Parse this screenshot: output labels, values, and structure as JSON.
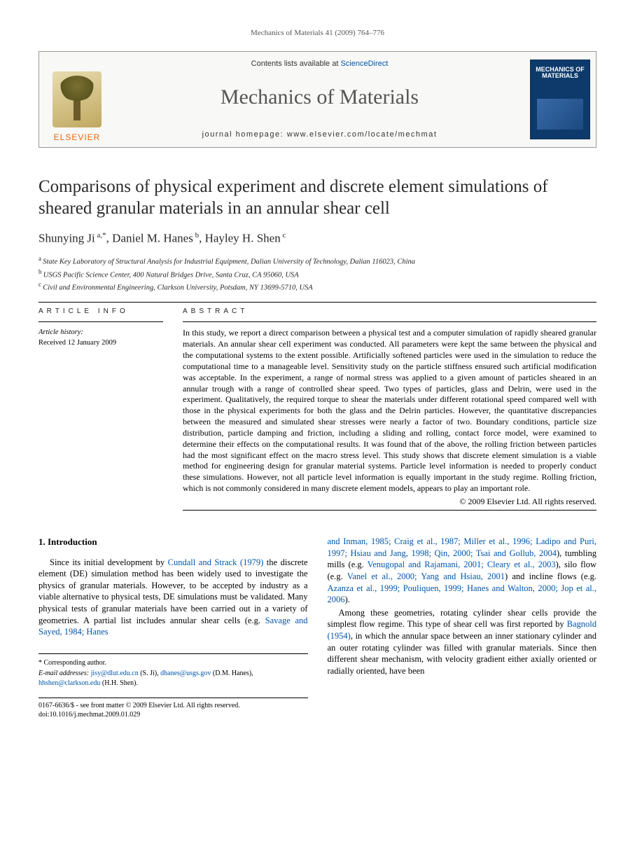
{
  "runningHead": "Mechanics of Materials 41 (2009) 764–776",
  "masthead": {
    "publisher": "ELSEVIER",
    "contentsLine_pre": "Contents lists available at ",
    "contentsLine_link": "ScienceDirect",
    "journalTitle": "Mechanics of Materials",
    "homepageLine": "journal homepage: www.elsevier.com/locate/mechmat",
    "coverTitle": "MECHANICS OF MATERIALS",
    "colors": {
      "boxBorder": "#999999",
      "boxBg": "#f8f8f6",
      "elsevierOrange": "#ec6608",
      "linkBlue": "#0055aa",
      "coverBlue": "#0d3a6b"
    }
  },
  "article": {
    "title": "Comparisons of physical experiment and discrete element simulations of sheared granular materials in an annular shear cell",
    "authorsHtmlParts": [
      {
        "t": "name",
        "v": "Shunying Ji"
      },
      {
        "t": "sup",
        "v": " a,*"
      },
      {
        "t": "sep",
        "v": ", "
      },
      {
        "t": "name",
        "v": "Daniel M. Hanes"
      },
      {
        "t": "sup",
        "v": " b"
      },
      {
        "t": "sep",
        "v": ", "
      },
      {
        "t": "name",
        "v": "Hayley H. Shen"
      },
      {
        "t": "sup",
        "v": " c"
      }
    ],
    "affiliations": [
      {
        "sup": "a",
        "text": "State Key Laboratory of Structural Analysis for Industrial Equipment, Dalian University of Technology, Dalian 116023, China"
      },
      {
        "sup": "b",
        "text": "USGS Pacific Science Center, 400 Natural Bridges Drive, Santa Cruz, CA 95060, USA"
      },
      {
        "sup": "c",
        "text": "Civil and Environmental Engineering, Clarkson University, Potsdam, NY 13699-5710, USA"
      }
    ]
  },
  "info": {
    "head": "ARTICLE INFO",
    "historyLabel": "Article history:",
    "received": "Received 12 January 2009"
  },
  "abstract": {
    "head": "ABSTRACT",
    "text": "In this study, we report a direct comparison between a physical test and a computer simulation of rapidly sheared granular materials. An annular shear cell experiment was conducted. All parameters were kept the same between the physical and the computational systems to the extent possible. Artificially softened particles were used in the simulation to reduce the computational time to a manageable level. Sensitivity study on the particle stiffness ensured such artificial modification was acceptable. In the experiment, a range of normal stress was applied to a given amount of particles sheared in an annular trough with a range of controlled shear speed. Two types of particles, glass and Delrin, were used in the experiment. Qualitatively, the required torque to shear the materials under different rotational speed compared well with those in the physical experiments for both the glass and the Delrin particles. However, the quantitative discrepancies between the measured and simulated shear stresses were nearly a factor of two. Boundary conditions, particle size distribution, particle damping and friction, including a sliding and rolling, contact force model, were examined to determine their effects on the computational results. It was found that of the above, the rolling friction between particles had the most significant effect on the macro stress level. This study shows that discrete element simulation is a viable method for engineering design for granular material systems. Particle level information is needed to properly conduct these simulations. However, not all particle level information is equally important in the study regime. Rolling friction, which is not commonly considered in many discrete element models, appears to play an important role.",
    "copyright": "© 2009 Elsevier Ltd. All rights reserved."
  },
  "body": {
    "sectionNumber": "1.",
    "sectionTitle": "Introduction",
    "leftParaParts": [
      {
        "t": "txt",
        "v": "Since its initial development by "
      },
      {
        "t": "cite",
        "v": "Cundall and Strack (1979)"
      },
      {
        "t": "txt",
        "v": " the discrete element (DE) simulation method has been widely used to investigate the physics of granular materials. However, to be accepted by industry as a viable alternative to physical tests, DE simulations must be validated. Many physical tests of granular materials have been carried out in a variety of geometries. A partial list includes annular shear cells (e.g. "
      },
      {
        "t": "cite",
        "v": "Savage and Sayed, 1984; Hanes"
      }
    ],
    "rightPara1Parts": [
      {
        "t": "cite",
        "v": "and Inman, 1985; Craig et al., 1987; Miller et al., 1996; Ladipo and Puri, 1997; Hsiau and Jang, 1998; Qin, 2000; Tsai and Gollub, 2004"
      },
      {
        "t": "txt",
        "v": "), tumbling mills (e.g. "
      },
      {
        "t": "cite",
        "v": "Venugopal and Rajamani, 2001; Cleary et al., 2003"
      },
      {
        "t": "txt",
        "v": "), silo flow (e.g. "
      },
      {
        "t": "cite",
        "v": "Vanel et al., 2000; Yang and Hsiau, 2001"
      },
      {
        "t": "txt",
        "v": ") and incline flows (e.g. "
      },
      {
        "t": "cite",
        "v": "Azanza et al., 1999; Pouliquen, 1999; Hanes and Walton, 2000; Jop et al., 2006"
      },
      {
        "t": "txt",
        "v": ")."
      }
    ],
    "rightPara2Parts": [
      {
        "t": "txt",
        "v": "Among these geometries, rotating cylinder shear cells provide the simplest flow regime. This type of shear cell was first reported by "
      },
      {
        "t": "cite",
        "v": "Bagnold (1954)"
      },
      {
        "t": "txt",
        "v": ", in which the annular space between an inner stationary cylinder and an outer rotating cylinder was filled with granular materials. Since then different shear mechanism, with velocity gradient either axially oriented or radially oriented, have been"
      }
    ]
  },
  "footnotes": {
    "corresponding": "* Corresponding author.",
    "emailsLabel": "E-mail addresses:",
    "emails": [
      {
        "addr": "jisy@dlut.edu.cn",
        "who": "(S. Ji)"
      },
      {
        "addr": "dhanes@usgs.gov",
        "who": "(D.M. Hanes)"
      },
      {
        "addr": "hhshen@clarkson.edu",
        "who": "(H.H. Shen)"
      }
    ]
  },
  "doiBlock": {
    "line1": "0167-6636/$ - see front matter © 2009 Elsevier Ltd. All rights reserved.",
    "line2": "doi:10.1016/j.mechmat.2009.01.029"
  },
  "typography": {
    "bodyFont": "Times New Roman",
    "bodyFontSizePt": 9.5,
    "titleFontSizePt": 19,
    "authorsFontSizePt": 13,
    "abstractFontSizePt": 9,
    "linkColor": "#0055aa",
    "textColor": "#000000",
    "pageBg": "#ffffff"
  },
  "layout": {
    "pageWidthPx": 907,
    "pageHeightPx": 1238,
    "sidePaddingPx": 55,
    "infoColWidthPx": 178,
    "bodyColGapPx": 28
  }
}
